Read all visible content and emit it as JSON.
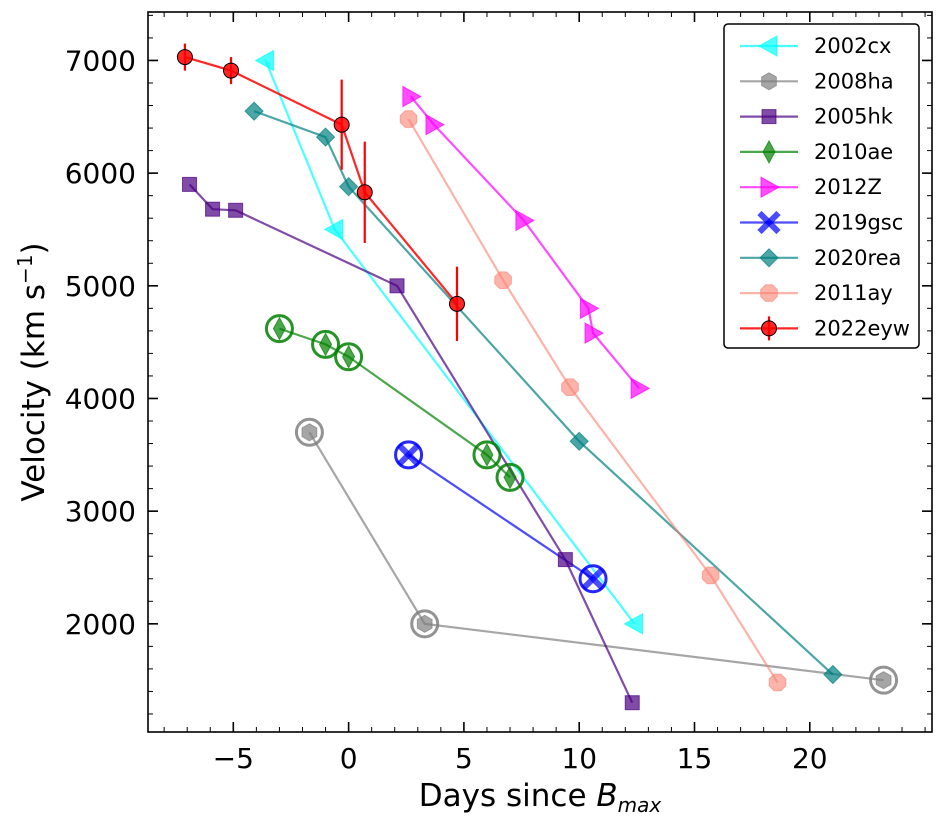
{
  "chart_data": {
    "type": "scatter",
    "title": "",
    "xlabel_main": "Days since ",
    "xlabel_italic": "B",
    "xlabel_sub": "max",
    "ylabel_main": "Velocity (km s",
    "ylabel_sup": "−1",
    "ylabel_end": ")",
    "xlim": [
      -8.7,
      25.3
    ],
    "ylim": [
      1040,
      7430
    ],
    "xticks": [
      -5,
      0,
      5,
      10,
      15,
      20
    ],
    "xtick_labels": [
      "−5",
      "0",
      "5",
      "10",
      "15",
      "20"
    ],
    "yticks": [
      2000,
      3000,
      4000,
      5000,
      6000,
      7000
    ],
    "ytick_labels": [
      "2000",
      "3000",
      "4000",
      "5000",
      "6000",
      "7000"
    ],
    "legend_position": "top-right",
    "series": [
      {
        "name": "2002cx",
        "color": "#00ffff",
        "marker": "triangle-left",
        "alpha": 0.7,
        "x": [
          -3.6,
          -0.6,
          12.4
        ],
        "y": [
          7000,
          5500,
          2000
        ]
      },
      {
        "name": "2008ha",
        "color": "#808080",
        "marker": "hexagon",
        "alpha": 0.7,
        "circled": true,
        "x": [
          -1.7,
          3.3,
          23.2
        ],
        "y": [
          3700,
          2000,
          1500
        ]
      },
      {
        "name": "2005hk",
        "color": "#4b0082",
        "marker": "square",
        "alpha": 0.7,
        "x": [
          -6.9,
          -5.9,
          -4.9,
          2.1,
          9.4,
          12.3
        ],
        "y": [
          5900,
          5680,
          5670,
          5000,
          2570,
          1300
        ]
      },
      {
        "name": "2010ae",
        "color": "#008000",
        "marker": "thin-diamond",
        "alpha": 0.7,
        "circled": true,
        "x": [
          -3.0,
          -1.0,
          0.0,
          6.0,
          7.0
        ],
        "y": [
          4620,
          4480,
          4370,
          3500,
          3300
        ]
      },
      {
        "name": "2012Z",
        "color": "#ff00ff",
        "marker": "triangle-right",
        "alpha": 0.7,
        "x": [
          2.7,
          3.7,
          7.6,
          10.4,
          10.6,
          12.6
        ],
        "y": [
          6680,
          6430,
          5580,
          4800,
          4580,
          4090
        ]
      },
      {
        "name": "2019gsc",
        "color": "#0000ff",
        "marker": "x-filled",
        "alpha": 0.7,
        "circled": true,
        "x": [
          2.6,
          10.6
        ],
        "y": [
          3500,
          2400
        ]
      },
      {
        "name": "2020rea",
        "color": "#008080",
        "marker": "diamond",
        "alpha": 0.7,
        "x": [
          -4.1,
          -1.0,
          0.0,
          10.0,
          21.0
        ],
        "y": [
          6550,
          6320,
          5880,
          3620,
          1550
        ]
      },
      {
        "name": "2011ay",
        "color": "#fa8072",
        "marker": "octagon",
        "alpha": 0.6,
        "x": [
          2.6,
          6.7,
          9.6,
          15.7,
          18.6
        ],
        "y": [
          6480,
          5050,
          4100,
          2430,
          1480
        ]
      },
      {
        "name": "2022eyw",
        "color": "#ff0000",
        "marker": "circle-errorbar",
        "alpha": 0.85,
        "x": [
          -7.1,
          -5.1,
          -0.3,
          0.7,
          4.7
        ],
        "y": [
          7030,
          6910,
          6430,
          5830,
          4840
        ],
        "yerr": [
          120,
          120,
          400,
          450,
          330
        ]
      }
    ]
  }
}
